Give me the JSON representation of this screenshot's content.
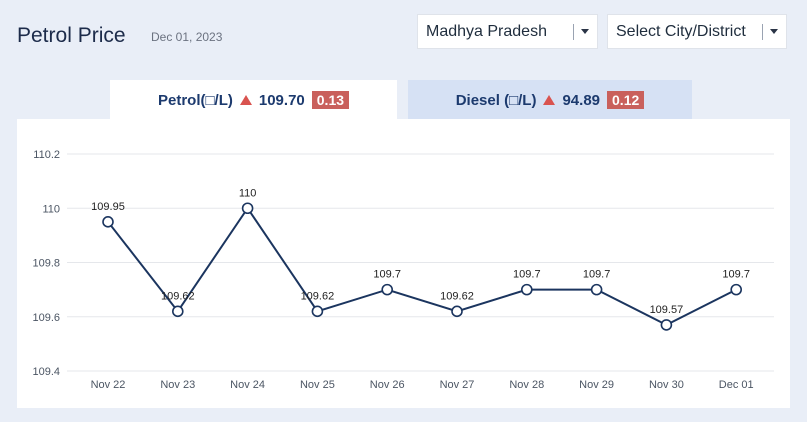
{
  "header": {
    "title": "Petrol Price",
    "date": "Dec 01, 2023"
  },
  "filters": {
    "state": {
      "value": "Madhya Pradesh"
    },
    "city": {
      "value": "Select City/District"
    }
  },
  "tabs": [
    {
      "fuel": "Petrol(□/L)",
      "price": "109.70",
      "change": "0.13",
      "direction": "up",
      "active": true
    },
    {
      "fuel": "Diesel (□/L)",
      "price": "94.89",
      "change": "0.12",
      "direction": "up",
      "active": false
    }
  ],
  "colors": {
    "line": "#1b355f",
    "up_arrow": "#d9534f",
    "badge": "#c9605c",
    "active_tab": "#ffffff",
    "inactive_tab": "#d6e1f4"
  },
  "icons": {
    "dropdown": "chevron-down-icon",
    "trend": "up-triangle-icon"
  },
  "chart_data": {
    "type": "line",
    "categories": [
      "Nov 22",
      "Nov 23",
      "Nov 24",
      "Nov 25",
      "Nov 26",
      "Nov 27",
      "Nov 28",
      "Nov 29",
      "Nov 30",
      "Dec 01"
    ],
    "values": [
      109.95,
      109.62,
      110,
      109.62,
      109.7,
      109.62,
      109.7,
      109.7,
      109.57,
      109.7
    ],
    "labels": [
      "109.95",
      "109.62",
      "110",
      "109.62",
      "109.7",
      "109.62",
      "109.7",
      "109.7",
      "109.57",
      "109.7"
    ],
    "yticks": [
      "109.4",
      "109.6",
      "109.8",
      "110",
      "110.2"
    ],
    "ylim": [
      109.4,
      110.2
    ],
    "grid": true
  }
}
